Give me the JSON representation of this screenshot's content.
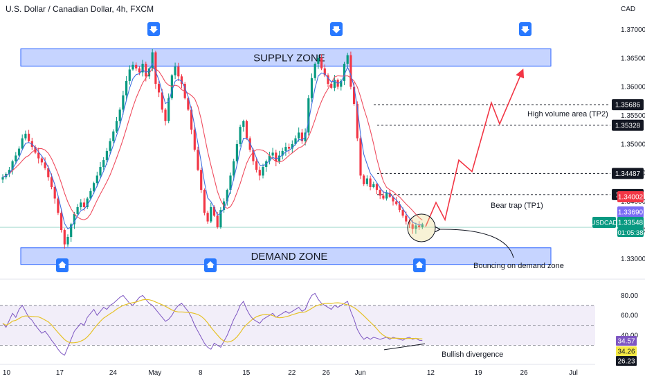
{
  "chart_data": {
    "type": "candlestick",
    "title": "U.S. Dollar / Canadian Dollar, 4h, FXCM",
    "currency": "CAD",
    "price_axis": {
      "ylim": [
        1.328,
        1.3715
      ],
      "ticks": [
        "1.37000",
        "1.36500",
        "1.36000",
        "1.35500",
        "1.35000",
        "1.34500",
        "1.34000",
        "1.33500",
        "1.33000"
      ],
      "tick_values": [
        1.37,
        1.365,
        1.36,
        1.355,
        1.35,
        1.345,
        1.34,
        1.335,
        1.33
      ]
    },
    "time_axis": {
      "labels": [
        "10",
        "17",
        "24",
        "May",
        "8",
        "15",
        "22",
        "26",
        "Jun",
        "12",
        "19",
        "26",
        "Jul"
      ],
      "label_index": [
        2,
        30,
        58,
        80,
        104,
        128,
        152,
        170,
        188,
        225,
        250,
        274,
        300
      ]
    },
    "candles_close": [
      1.3442,
      1.3448,
      1.3455,
      1.347,
      1.348,
      1.3492,
      1.351,
      1.3518,
      1.3505,
      1.3495,
      1.3485,
      1.3475,
      1.3468,
      1.3458,
      1.3442,
      1.3425,
      1.3405,
      1.338,
      1.335,
      1.3325,
      1.3338,
      1.336,
      1.3378,
      1.339,
      1.3398,
      1.339,
      1.3405,
      1.3418,
      1.3432,
      1.3445,
      1.346,
      1.3472,
      1.3488,
      1.3505,
      1.3522,
      1.354,
      1.356,
      1.3585,
      1.361,
      1.363,
      1.3638,
      1.3632,
      1.3625,
      1.364,
      1.3618,
      1.3632,
      1.366,
      1.3605,
      1.359,
      1.356,
      1.354,
      1.358,
      1.362,
      1.3635,
      1.3618,
      1.3605,
      1.358,
      1.356,
      1.3525,
      1.349,
      1.3455,
      1.342,
      1.338,
      1.3365,
      1.339,
      1.3375,
      1.3355,
      1.3385,
      1.34,
      1.342,
      1.3445,
      1.347,
      1.35,
      1.353,
      1.354,
      1.351,
      1.349,
      1.347,
      1.3455,
      1.3445,
      1.346,
      1.347,
      1.348,
      1.3485,
      1.347,
      1.348,
      1.3488,
      1.3495,
      1.3492,
      1.35,
      1.351,
      1.352,
      1.3505,
      1.352,
      1.358,
      1.3615,
      1.364,
      1.365,
      1.3632,
      1.362,
      1.3605,
      1.3598,
      1.3612,
      1.36,
      1.361,
      1.364,
      1.3655,
      1.36,
      1.357,
      1.351,
      1.3445,
      1.343,
      1.344,
      1.3425,
      1.343,
      1.342,
      1.341,
      1.3405,
      1.3415,
      1.3408,
      1.34,
      1.3395,
      1.3385,
      1.3375,
      1.3365,
      1.336,
      1.3352,
      1.3358,
      1.3355,
      1.336
    ],
    "series": [
      {
        "name": "",
        "kind": "sma",
        "color": "#ef4d5f"
      },
      {
        "name": "",
        "kind": "ema",
        "color": "#3f6fe0"
      }
    ],
    "zones": [
      {
        "label": "SUPPLY ZONE",
        "price_top": 1.3666,
        "price_bottom": 1.3636
      },
      {
        "label": "DEMAND ZONE",
        "price_top": 1.3319,
        "price_bottom": 1.329
      }
    ],
    "levels": [
      {
        "value": 1.35686,
        "label": "1.35686",
        "note": "High volume area (TP2)"
      },
      {
        "value": 1.35328,
        "label": "1.35328",
        "note": ""
      },
      {
        "value": 1.34487,
        "label": "1.34487",
        "note": ""
      },
      {
        "value": 1.34119,
        "label": "1.34119",
        "note": "Bear trap (TP1)"
      }
    ],
    "price_tags": [
      {
        "label": "1.34002",
        "value": 1.34002,
        "color": "#f23645"
      },
      {
        "label": "1.33690",
        "value": 1.3369,
        "color": "#7b6cf6"
      },
      {
        "label": "1.33548",
        "value": 1.33548,
        "color": "#089981"
      }
    ],
    "symbol_tag": {
      "symbol": "USDCAD",
      "countdown": "01:05:38"
    },
    "annotations": [
      "Bouncing on demand zone",
      "Bullish divergence"
    ],
    "projection": [
      {
        "i": 130,
        "p": 1.3356
      },
      {
        "i": 135,
        "p": 1.3395
      },
      {
        "i": 138,
        "p": 1.3365
      },
      {
        "i": 148,
        "p": 1.347
      },
      {
        "i": 155,
        "p": 1.345
      },
      {
        "i": 170,
        "p": 1.357
      },
      {
        "i": 175,
        "p": 1.3535
      },
      {
        "i": 188,
        "p": 1.3627
      }
    ],
    "arrows_down_index": [
      41,
      110,
      277
    ],
    "arrows_up_index": [
      16,
      62,
      123
    ],
    "rsi": {
      "ylim": [
        15,
        90
      ],
      "ticks": [
        "80.00",
        "60.00",
        "40.00"
      ],
      "tick_values": [
        80,
        60,
        40
      ],
      "band": [
        30,
        70
      ],
      "mid": 50,
      "value_tags": [
        {
          "label": "34.57",
          "value": 34.57,
          "color": "#7e57c2"
        },
        {
          "label": "34.26",
          "value": 34.26,
          "color": "#f5e945"
        },
        {
          "label": "26.23",
          "value": 26.23,
          "color": "#131722"
        }
      ],
      "values": [
        52,
        48,
        55,
        62,
        58,
        66,
        70,
        64,
        58,
        55,
        50,
        46,
        42,
        44,
        40,
        35,
        31,
        26,
        22,
        20,
        28,
        36,
        44,
        48,
        52,
        50,
        58,
        62,
        66,
        60,
        64,
        68,
        66,
        70,
        72,
        75,
        78,
        80,
        76,
        72,
        70,
        74,
        78,
        80,
        76,
        72,
        70,
        66,
        62,
        58,
        54,
        56,
        60,
        66,
        70,
        72,
        68,
        64,
        58,
        50,
        44,
        38,
        32,
        28,
        26,
        32,
        30,
        28,
        34,
        40,
        48,
        56,
        62,
        70,
        74,
        66,
        60,
        56,
        54,
        52,
        56,
        58,
        60,
        62,
        58,
        60,
        62,
        64,
        62,
        64,
        66,
        68,
        64,
        66,
        74,
        80,
        82,
        76,
        72,
        70,
        68,
        66,
        70,
        68,
        70,
        72,
        74,
        64,
        56,
        46,
        40,
        36,
        38,
        36,
        38,
        37,
        36,
        37,
        38,
        36,
        38,
        37,
        36,
        35,
        37,
        38,
        36,
        37,
        35,
        34.6
      ]
    }
  },
  "colors": {
    "bull": "#089981",
    "bear": "#f23645",
    "zone_fill": "#b3c5ff",
    "zone_border": "#2962ff",
    "arrow": "#2979ff",
    "projection": "#f23645",
    "rsi_line": "#7e57c2",
    "rsi_ma": "#e6c229"
  }
}
